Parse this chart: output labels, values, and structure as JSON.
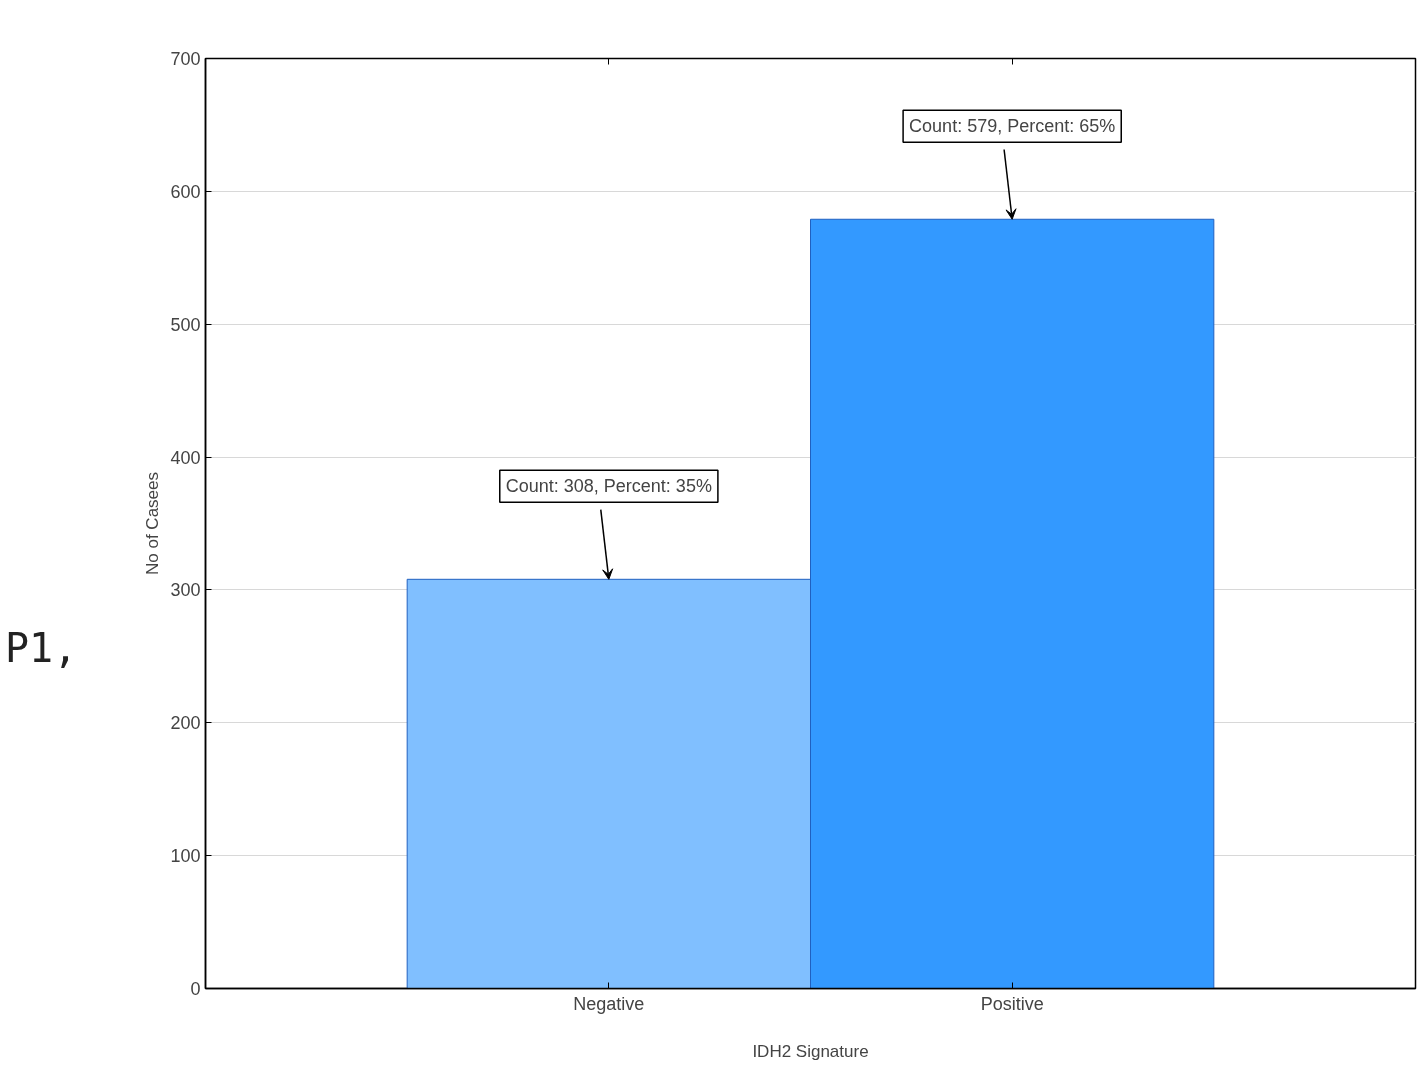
{
  "chart_data": {
    "type": "bar",
    "xlabel": "IDH2 Signature",
    "ylabel": "No of Casees",
    "categories": [
      "Negative",
      "Positive"
    ],
    "values": [
      308,
      579
    ],
    "colors": [
      "#80bfff",
      "#3399ff"
    ],
    "ylim": [
      0,
      700
    ],
    "yticks": [
      0,
      100,
      200,
      300,
      400,
      500,
      600,
      700
    ],
    "grid": "y",
    "annotations": [
      {
        "text": "Count: 308, Percent: 35%",
        "x": "Negative",
        "y": 308
      },
      {
        "text": "Count: 579, Percent: 65%",
        "x": "Positive",
        "y": 579
      },
      "P1,"
    ]
  }
}
